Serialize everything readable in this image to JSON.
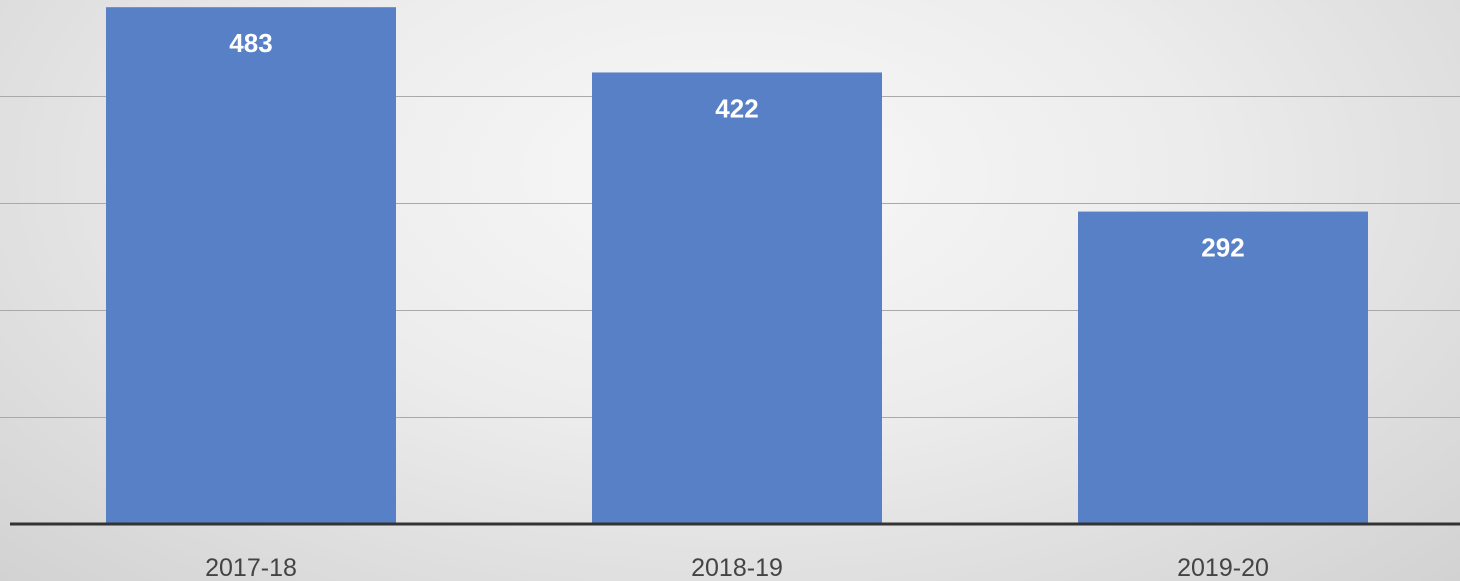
{
  "chart_data": {
    "type": "bar",
    "categories": [
      "2017-18",
      "2018-19",
      "2019-20"
    ],
    "values": [
      483,
      422,
      292
    ],
    "title": "",
    "xlabel": "",
    "ylabel": "",
    "ylim": [
      0,
      500
    ],
    "grid": true,
    "legend": "none",
    "colors": {
      "bar": "#5880c6",
      "data_label": "#ffffff",
      "gridline": "#a9a9a9",
      "axis": "#333333",
      "tick_label": "#444444"
    }
  }
}
